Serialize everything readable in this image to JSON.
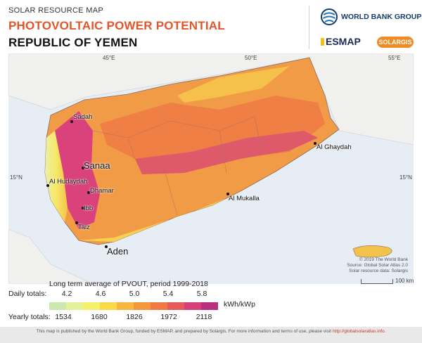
{
  "header": {
    "overline": "SOLAR RESOURCE MAP",
    "title": "PHOTOVOLTAIC POWER POTENTIAL",
    "country": "REPUBLIC OF YEMEN",
    "logos": {
      "world_bank": "WORLD BANK GROUP",
      "esmap": "ESMAP",
      "solargis": "SOLARGIS"
    }
  },
  "map": {
    "longitude_labels": [
      "45°E",
      "50°E",
      "55°E"
    ],
    "latitude_labels": [
      "15°N",
      "15°N"
    ],
    "cities": {
      "sadah": "Sadah",
      "sanaa": "Sanaa",
      "al_hudaydah": "Al Hudaydah",
      "dhamar": "Dhamar",
      "ibb": "Ibb",
      "taiz": "Taiz",
      "aden": "Aden",
      "al_mukalla": "Al Mukalla",
      "al_ghaydah": "Al Ghaydah"
    },
    "credits": [
      "© 2019 The World Bank",
      "Source: Global Solar Atlas 2.0",
      "Solar resource data: Solargis"
    ],
    "scale_label": "100 km",
    "colors": {
      "sea": "#e7edf4",
      "low": "#f0c848",
      "mid": "#f4a23f",
      "high": "#ef8044",
      "peak": "#d9427a"
    }
  },
  "legend": {
    "caption": "Long term average of PVOUT, period 1999-2018",
    "daily_label": "Daily totals:",
    "daily_values": [
      "4.2",
      "4.6",
      "5.0",
      "5.4",
      "5.8"
    ],
    "yearly_label": "Yearly totals:",
    "yearly_values": [
      "1534",
      "1680",
      "1826",
      "1972",
      "2118"
    ],
    "unit": "kWh/kWp",
    "gradient": [
      "#c9e9b0",
      "#e4f09a",
      "#f6ef6e",
      "#f8d94a",
      "#f6b640",
      "#f3973e",
      "#ef7a44",
      "#e65a5a",
      "#d6417a",
      "#b8307e"
    ]
  },
  "footer": {
    "text": "This map is published by the World Bank Group, funded by ESMAP, and prepared by Solargis. For more information and terms of use, please visit",
    "link": "http://globalsolaratlas.info."
  }
}
